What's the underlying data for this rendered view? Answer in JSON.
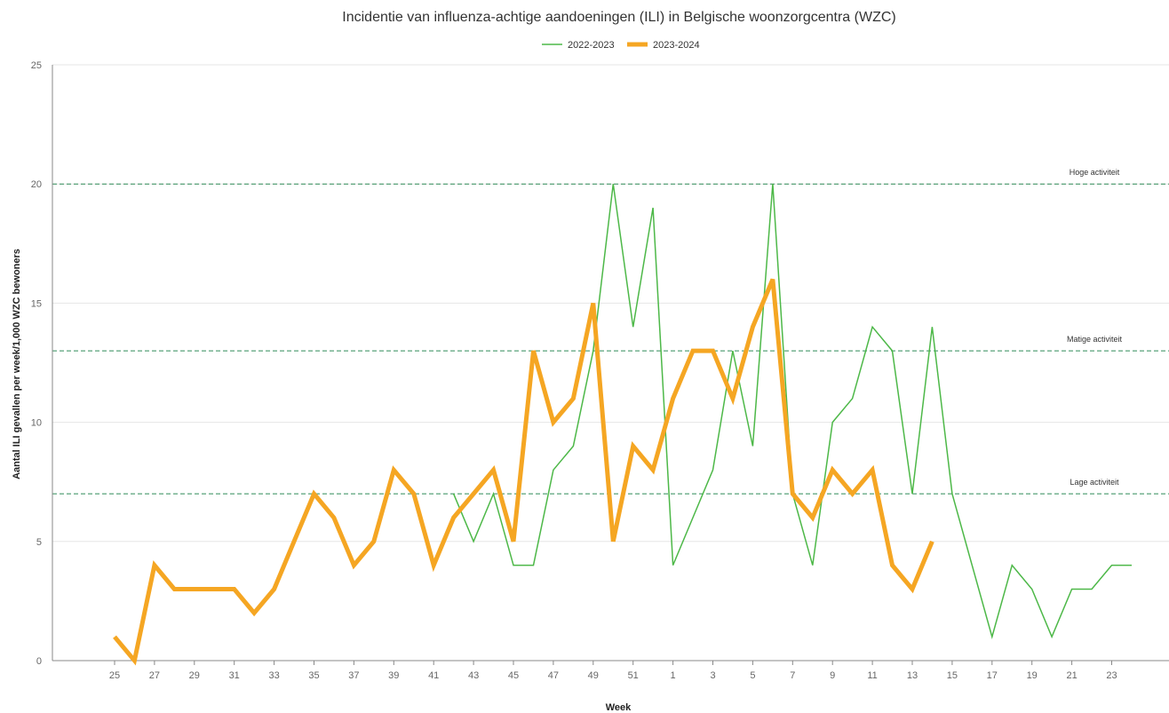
{
  "chart_data": {
    "type": "line",
    "title": "Incidentie van influenza-achtige aandoeningen (ILI) in Belgische woonzorgcentra (WZC)",
    "xlabel": "Week",
    "ylabel": "Aantal ILI gevallen per week/1,000 WZC bewoners",
    "ylim": [
      0,
      25
    ],
    "y_ticks": [
      "0",
      "5",
      "10",
      "15",
      "20",
      "25"
    ],
    "grid": "horizontal",
    "legend_position": "top-center",
    "categories": [
      "25",
      "26",
      "27",
      "28",
      "29",
      "30",
      "31",
      "32",
      "33",
      "34",
      "35",
      "36",
      "37",
      "38",
      "39",
      "40",
      "41",
      "42",
      "43",
      "44",
      "45",
      "46",
      "47",
      "48",
      "49",
      "50",
      "51",
      "52",
      "1",
      "2",
      "3",
      "4",
      "5",
      "6",
      "7",
      "8",
      "9",
      "10",
      "11",
      "12",
      "13",
      "14",
      "15",
      "16",
      "17",
      "18",
      "19",
      "20",
      "21",
      "22",
      "23",
      "24"
    ],
    "x_tick_labels": [
      "25",
      "27",
      "29",
      "31",
      "33",
      "35",
      "37",
      "39",
      "41",
      "43",
      "45",
      "47",
      "49",
      "51",
      "1",
      "3",
      "5",
      "7",
      "9",
      "11",
      "13",
      "15",
      "17",
      "19",
      "21",
      "23"
    ],
    "series": [
      {
        "name": "2022-2023",
        "color": "#4db848",
        "values": [
          null,
          null,
          null,
          null,
          null,
          null,
          null,
          null,
          null,
          null,
          null,
          null,
          null,
          null,
          null,
          null,
          null,
          7,
          5,
          7,
          4,
          4,
          8,
          9,
          13,
          20,
          14,
          19,
          4,
          6,
          8,
          13,
          9,
          20,
          7,
          4,
          10,
          11,
          14,
          13,
          7,
          14,
          7,
          4,
          1,
          4,
          3,
          1,
          3,
          3,
          4,
          4
        ]
      },
      {
        "name": "2023-2024",
        "color": "#f5a623",
        "values": [
          1,
          0,
          4,
          3,
          3,
          3,
          3,
          2,
          3,
          5,
          7,
          6,
          4,
          5,
          8,
          7,
          4,
          6,
          7,
          8,
          5,
          13,
          10,
          11,
          15,
          5,
          9,
          8,
          11,
          13,
          13,
          11,
          14,
          16,
          7,
          6,
          8,
          7,
          8,
          4,
          3,
          5,
          null,
          null,
          null,
          null,
          null,
          null,
          null,
          null,
          null,
          null
        ]
      }
    ],
    "thresholds": [
      {
        "label": "Hoge activiteit",
        "value": 20
      },
      {
        "label": "Matige activiteit",
        "value": 13
      },
      {
        "label": "Lage activiteit",
        "value": 7
      }
    ],
    "threshold_color": "#2e8b57"
  }
}
